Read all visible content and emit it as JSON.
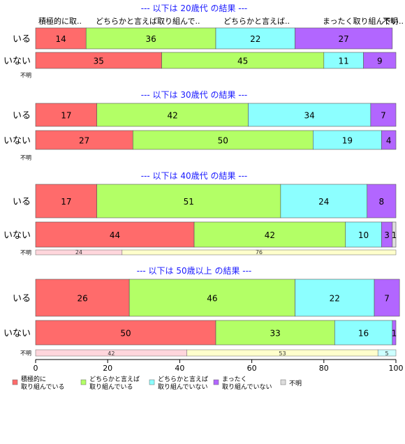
{
  "chart_data": {
    "type": "bar",
    "orientation": "horizontal",
    "stacked": true,
    "xlim": [
      0,
      100
    ],
    "x_ticks": [
      "0",
      "20",
      "40",
      "60",
      "80",
      "100"
    ],
    "category_headers": [
      "積極的に取..",
      "どちらかと言えば取り組んで..",
      "どちらかと言えば..",
      "まったく取り組んでい..",
      "不明"
    ],
    "legend": [
      {
        "label": "積極的に\n取り組んでいる",
        "color": "#ff6b6b"
      },
      {
        "label": "どちらかと言えば\n取り組んでいる",
        "color": "#b3ff66"
      },
      {
        "label": "どちらかと言えば\n取り組んでいない",
        "color": "#8cffff"
      },
      {
        "label": "まったく\n取り組んでいない",
        "color": "#b266ff"
      },
      {
        "label": "不明",
        "color": "#dddddd"
      }
    ],
    "unknown_colors": [
      "#ffd6dc",
      "#ffffcc",
      "#ccffff",
      "#ffccff"
    ],
    "panels": [
      {
        "title": "--- 以下は 20歳代 の結果 ---",
        "rows": [
          {
            "label": "いる",
            "values": [
              14,
              36,
              22,
              27,
              0
            ],
            "labels": [
              "14",
              "36",
              "22",
              "27",
              ""
            ]
          },
          {
            "label": "いない",
            "values": [
              35,
              45,
              11,
              9,
              0
            ],
            "labels": [
              "35",
              "45",
              "11",
              "9",
              ""
            ]
          }
        ],
        "unknown": {
          "label": "不明",
          "values": [],
          "labels": []
        }
      },
      {
        "title": "--- 以下は 30歳代 の結果 ---",
        "rows": [
          {
            "label": "いる",
            "values": [
              17,
              42,
              34,
              7,
              0
            ],
            "labels": [
              "17",
              "42",
              "34",
              "7",
              ""
            ]
          },
          {
            "label": "いない",
            "values": [
              27,
              50,
              19,
              4,
              0
            ],
            "labels": [
              "27",
              "50",
              "19",
              "4",
              ""
            ]
          }
        ],
        "unknown": {
          "label": "不明",
          "values": [],
          "labels": []
        }
      },
      {
        "title": "--- 以下は 40歳代 の結果 ---",
        "rows": [
          {
            "label": "いる",
            "values": [
              17,
              51,
              24,
              8,
              0
            ],
            "labels": [
              "17",
              "51",
              "24",
              "8",
              ""
            ]
          },
          {
            "label": "いない",
            "values": [
              44,
              42,
              10,
              3,
              1
            ],
            "labels": [
              "44",
              "42",
              "10",
              "3",
              "1"
            ]
          }
        ],
        "unknown": {
          "label": "不明",
          "values": [
            24,
            76
          ],
          "labels": [
            "24",
            "76"
          ]
        }
      },
      {
        "title": "--- 以下は 50歳以上 の結果 ---",
        "rows": [
          {
            "label": "いる",
            "values": [
              26,
              46,
              22,
              7,
              0
            ],
            "labels": [
              "26",
              "46",
              "22",
              "7",
              ""
            ]
          },
          {
            "label": "いない",
            "values": [
              50,
              33,
              16,
              1,
              0
            ],
            "labels": [
              "50",
              "33",
              "16",
              "1",
              ""
            ]
          }
        ],
        "unknown": {
          "label": "不明",
          "values": [
            42,
            53,
            5
          ],
          "labels": [
            "42",
            "53",
            "5"
          ]
        }
      }
    ]
  }
}
